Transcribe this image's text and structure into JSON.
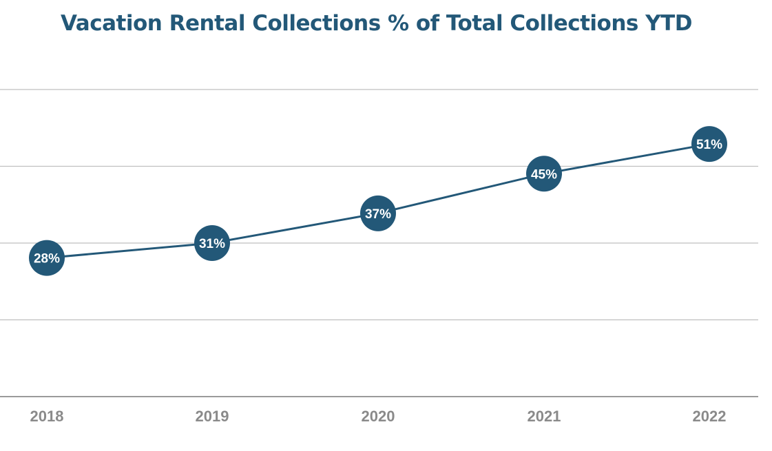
{
  "chart_data": {
    "type": "line",
    "title": "Vacation Rental Collections % of Total Collections YTD",
    "categories": [
      "2018",
      "2019",
      "2020",
      "2021",
      "2022"
    ],
    "series": [
      {
        "values": [
          28,
          31,
          37,
          45,
          51
        ],
        "labels": [
          "28%",
          "31%",
          "37%",
          "45%",
          "51%"
        ]
      }
    ],
    "xlabel": "",
    "ylabel": "",
    "ylim": [
      0,
      62
    ],
    "grid": true,
    "legend": "none",
    "colors": {
      "series": "#235878",
      "marker": "#235878",
      "grid": "#bfbfbf",
      "axis": "#9a9a9a",
      "ticks": "#8a8a8a",
      "title": "#235878"
    }
  }
}
